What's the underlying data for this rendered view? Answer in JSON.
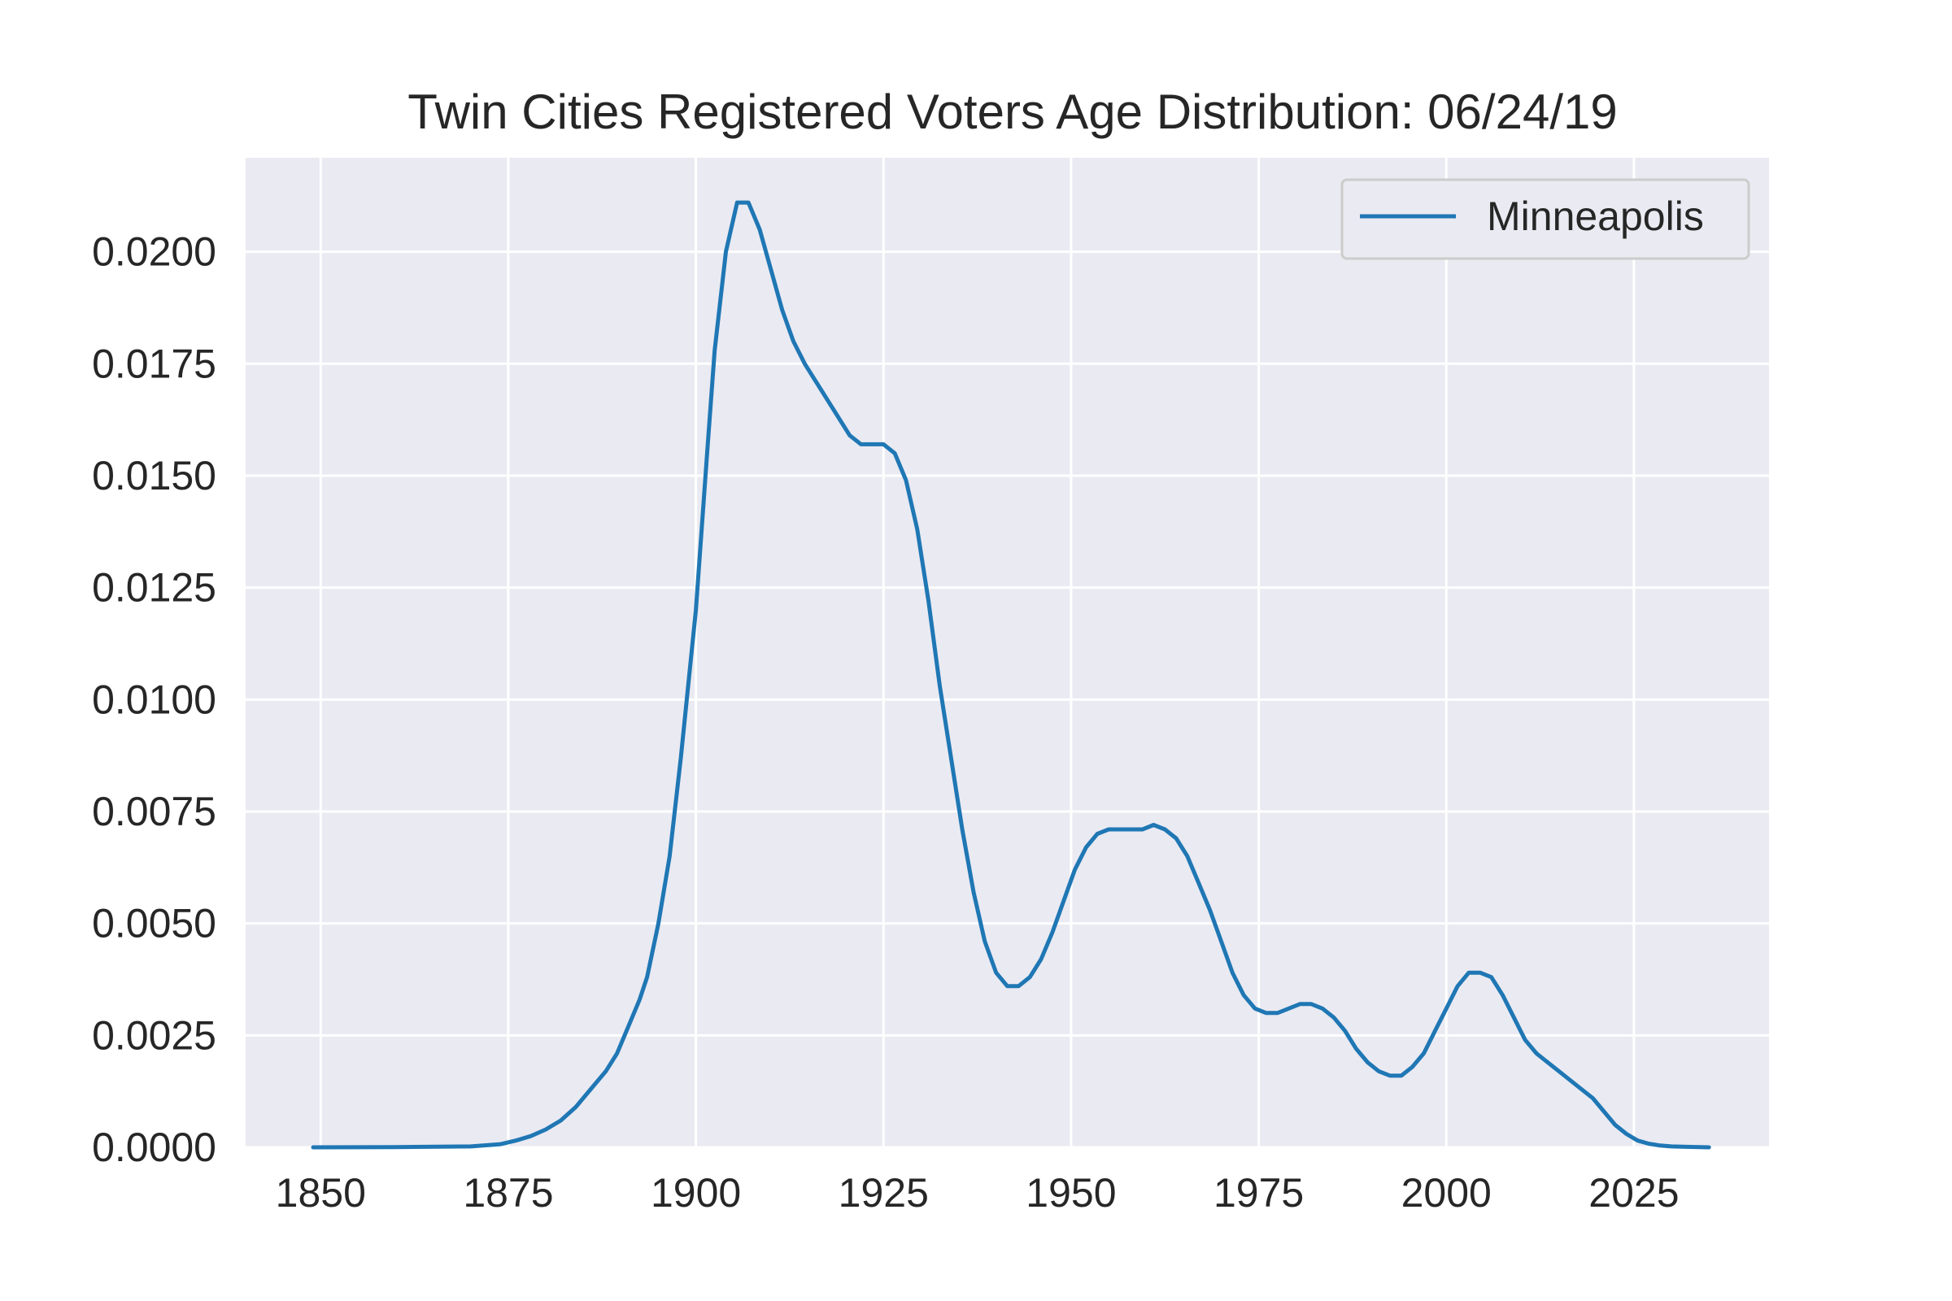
{
  "chart_data": {
    "type": "line",
    "title": "Twin Cities Registered Voters Age Distribution: 06/24/19",
    "xlabel": "",
    "ylabel": "",
    "xlim": [
      1840,
      2043
    ],
    "ylim": [
      0,
      0.0221
    ],
    "x_ticks": [
      1850,
      1875,
      1900,
      1925,
      1950,
      1975,
      2000,
      2025
    ],
    "x_tick_labels": [
      "1850",
      "1875",
      "1900",
      "1925",
      "1950",
      "1975",
      "2000",
      "2025"
    ],
    "y_ticks": [
      0,
      0.0025,
      0.005,
      0.0075,
      0.01,
      0.0125,
      0.015,
      0.0175,
      0.02
    ],
    "y_tick_labels": [
      "0.0000",
      "0.0025",
      "0.0050",
      "0.0075",
      "0.0100",
      "0.0125",
      "0.0150",
      "0.0175",
      "0.0200"
    ],
    "grid": true,
    "legend_position": "top-right",
    "background_color": "#eaeaf2",
    "grid_color": "#ffffff",
    "series": [
      {
        "name": "Minneapolis",
        "color": "#1f77b4",
        "x": [
          1849,
          1860,
          1870,
          1874,
          1876,
          1878,
          1880,
          1882,
          1884,
          1886,
          1888,
          1889.5,
          1891,
          1892.5,
          1893.5,
          1895,
          1896.5,
          1898,
          1900,
          1901.5,
          1902.5,
          1904,
          1905.5,
          1907,
          1908.5,
          1910,
          1911.5,
          1913,
          1914.5,
          1916,
          1917.5,
          1919,
          1920.5,
          1922,
          1923.5,
          1925,
          1926.5,
          1928,
          1929.5,
          1931,
          1932.5,
          1934,
          1935.5,
          1937,
          1938.5,
          1940,
          1941.5,
          1943,
          1944.5,
          1946,
          1947.5,
          1949,
          1950.5,
          1952,
          1953.5,
          1955,
          1956.5,
          1958,
          1959.5,
          1961,
          1962.5,
          1964,
          1965.5,
          1967,
          1968.5,
          1970,
          1971.5,
          1973,
          1974.5,
          1976,
          1977.5,
          1979,
          1980.5,
          1982,
          1983.5,
          1985,
          1986.5,
          1988,
          1989.5,
          1991,
          1992.5,
          1994,
          1995.5,
          1997,
          1998.5,
          2000,
          2001.5,
          2003,
          2004.5,
          2006,
          2007.5,
          2009,
          2010.5,
          2012,
          2013.5,
          2015,
          2016.5,
          2018,
          2019.5,
          2021,
          2022.5,
          2024,
          2025.5,
          2027,
          2028.5,
          2030,
          2032,
          2035
        ],
        "y": [
          0,
          5e-06,
          2e-05,
          7e-05,
          0.00015,
          0.00025,
          0.0004,
          0.0006,
          0.0009,
          0.0013,
          0.0017,
          0.0021,
          0.0027,
          0.0033,
          0.0038,
          0.005,
          0.0065,
          0.0087,
          0.012,
          0.0155,
          0.0178,
          0.02,
          0.0211,
          0.0211,
          0.0205,
          0.0196,
          0.0187,
          0.018,
          0.0175,
          0.0171,
          0.0167,
          0.0163,
          0.0159,
          0.0157,
          0.0157,
          0.0157,
          0.0155,
          0.0149,
          0.0138,
          0.0122,
          0.0103,
          0.0087,
          0.0071,
          0.0057,
          0.0046,
          0.0039,
          0.0036,
          0.0036,
          0.0038,
          0.0042,
          0.0048,
          0.0055,
          0.0062,
          0.0067,
          0.007,
          0.0071,
          0.0071,
          0.0071,
          0.0071,
          0.0072,
          0.0071,
          0.0069,
          0.0065,
          0.0059,
          0.0053,
          0.0046,
          0.0039,
          0.0034,
          0.0031,
          0.003,
          0.003,
          0.0031,
          0.0032,
          0.0032,
          0.0031,
          0.0029,
          0.0026,
          0.0022,
          0.0019,
          0.0017,
          0.0016,
          0.0016,
          0.0018,
          0.0021,
          0.0026,
          0.0031,
          0.0036,
          0.0039,
          0.0039,
          0.0038,
          0.0034,
          0.0029,
          0.0024,
          0.0021,
          0.0019,
          0.0017,
          0.0015,
          0.0013,
          0.0011,
          0.0008,
          0.0005,
          0.0003,
          0.00015,
          8e-05,
          4e-05,
          2e-05,
          1e-05,
          0
        ]
      }
    ]
  }
}
